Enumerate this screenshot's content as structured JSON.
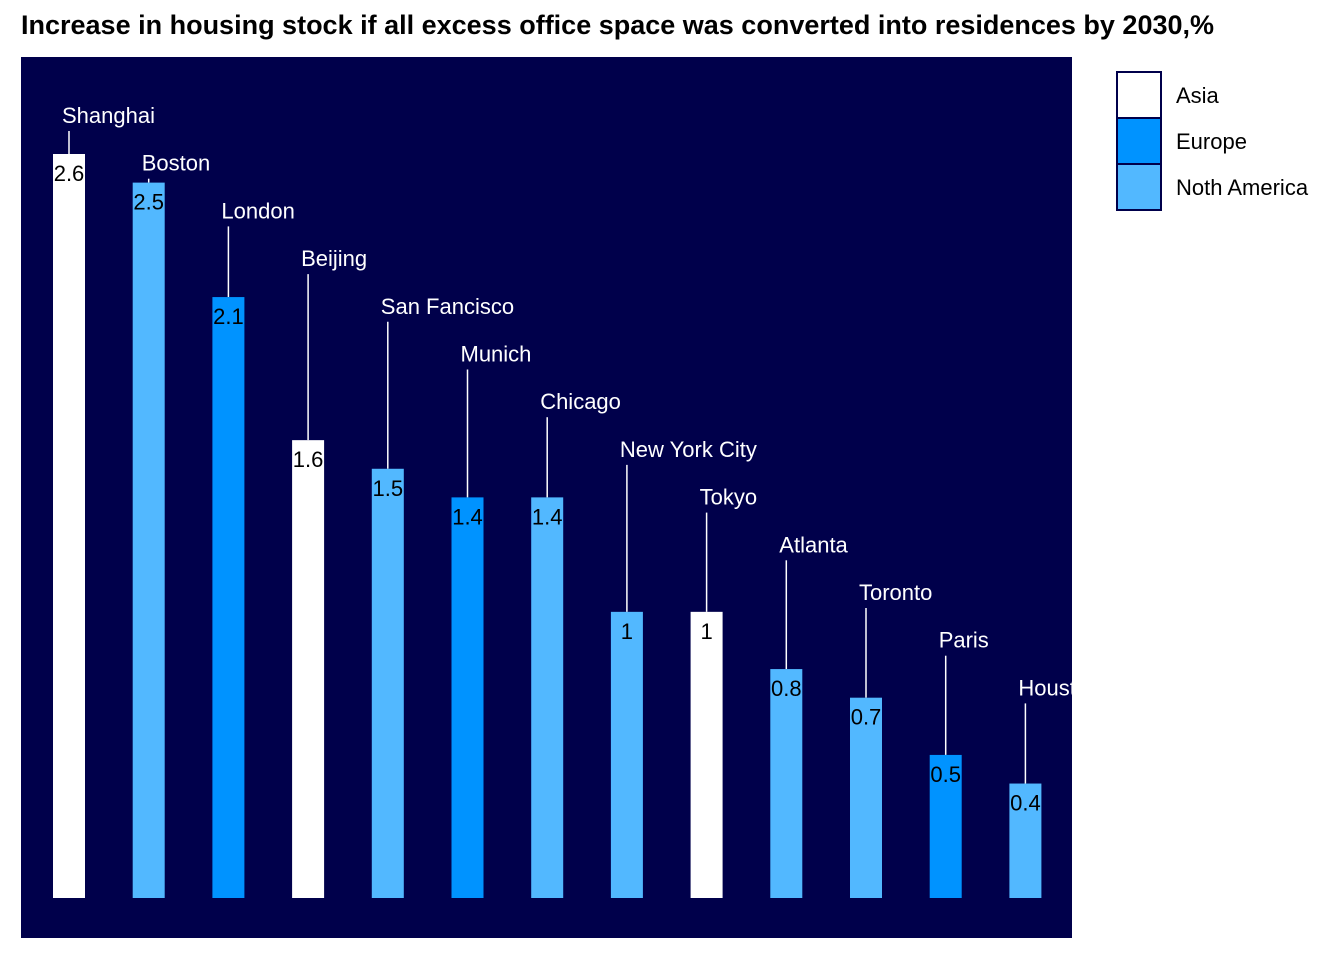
{
  "chart_data": {
    "type": "bar",
    "title": "Increase in housing stock if all excess office space was converted into residences by 2030,%",
    "xlabel": "",
    "ylabel": "",
    "ylim": [
      0,
      2.6
    ],
    "grid": false,
    "legend_position": "right",
    "background_color": "#00004b",
    "categories": [
      "Shanghai",
      "Boston",
      "London",
      "Beijing",
      "San Fancisco",
      "Munich",
      "Chicago",
      "New York City",
      "Tokyo",
      "Atlanta",
      "Toronto",
      "Paris",
      "Houston"
    ],
    "values": [
      2.6,
      2.5,
      2.1,
      1.6,
      1.5,
      1.4,
      1.4,
      1,
      1,
      0.8,
      0.7,
      0.5,
      0.4
    ],
    "value_labels": [
      "2.6",
      "2.5",
      "2.1",
      "1.6",
      "1.5",
      "1.4",
      "1.4",
      "1",
      "1",
      "0.8",
      "0.7",
      "0.5",
      "0.4"
    ],
    "regions": [
      "Asia",
      "Noth America",
      "Europe",
      "Asia",
      "Noth America",
      "Europe",
      "Noth America",
      "Noth America",
      "Asia",
      "Noth America",
      "Noth America",
      "Europe",
      "Noth America"
    ],
    "legend": [
      {
        "name": "Asia",
        "color": "#ffffff"
      },
      {
        "name": "Europe",
        "color": "#0093ff"
      },
      {
        "name": "Noth America",
        "color": "#52b8ff"
      }
    ]
  }
}
